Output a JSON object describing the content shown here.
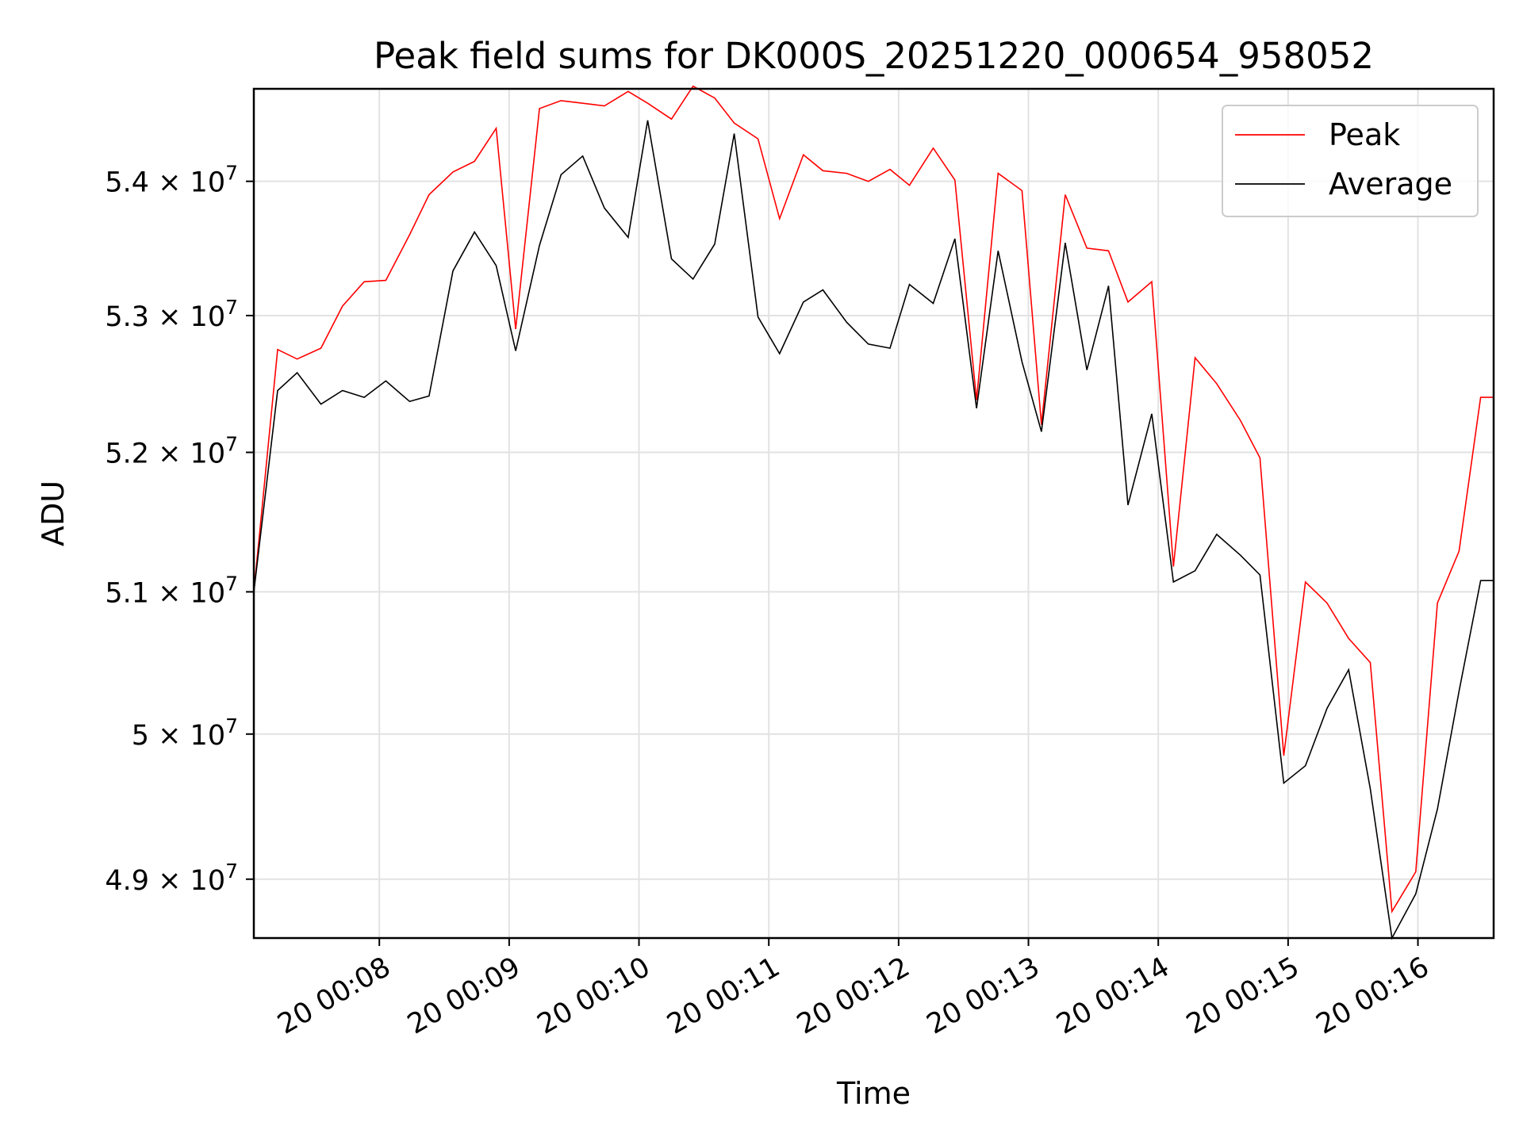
{
  "chart_data": {
    "type": "line",
    "title": "Peak field sums for DK000S_20251220_000654_958052",
    "xlabel": "Time",
    "ylabel": "ADU",
    "y_scale": "log",
    "x_start": "00:07:02",
    "x_end": "00:16:35",
    "xlim": [
      "00:07:02",
      "00:16:35"
    ],
    "ylim": [
      48600000,
      54700000
    ],
    "grid": true,
    "legend_position": "top-right",
    "x_ticks": [
      {
        "value": "00:08:00",
        "label": "20 00:08"
      },
      {
        "value": "00:09:00",
        "label": "20 00:09"
      },
      {
        "value": "00:10:00",
        "label": "20 00:10"
      },
      {
        "value": "00:11:00",
        "label": "20 00:11"
      },
      {
        "value": "00:12:00",
        "label": "20 00:12"
      },
      {
        "value": "00:13:00",
        "label": "20 00:13"
      },
      {
        "value": "00:14:00",
        "label": "20 00:14"
      },
      {
        "value": "00:15:00",
        "label": "20 00:15"
      },
      {
        "value": "00:16:00",
        "label": "20 00:16"
      }
    ],
    "y_ticks": [
      {
        "value": 49000000,
        "mantissa": "4.9",
        "exponent": "7"
      },
      {
        "value": 50000000,
        "mantissa": "5",
        "exponent": "7"
      },
      {
        "value": 51000000,
        "mantissa": "5.1",
        "exponent": "7"
      },
      {
        "value": 52000000,
        "mantissa": "5.2",
        "exponent": "7"
      },
      {
        "value": 53000000,
        "mantissa": "5.3",
        "exponent": "7"
      },
      {
        "value": 54000000,
        "mantissa": "5.4",
        "exponent": "7"
      }
    ],
    "x": [
      "00:07:02",
      "00:07:13",
      "00:07:22",
      "00:07:33",
      "00:07:43",
      "00:07:53",
      "00:08:03",
      "00:08:14",
      "00:08:23",
      "00:08:34",
      "00:08:44",
      "00:08:54",
      "00:09:03",
      "00:09:14",
      "00:09:24",
      "00:09:34",
      "00:09:44",
      "00:09:55",
      "00:10:04",
      "00:10:15",
      "00:10:25",
      "00:10:35",
      "00:10:44",
      "00:10:55",
      "00:11:05",
      "00:11:16",
      "00:11:25",
      "00:11:36",
      "00:11:46",
      "00:11:56",
      "00:12:05",
      "00:12:16",
      "00:12:26",
      "00:12:36",
      "00:12:46",
      "00:12:57",
      "00:13:06",
      "00:13:17",
      "00:13:27",
      "00:13:37",
      "00:13:46",
      "00:13:57",
      "00:14:07",
      "00:14:17",
      "00:14:27",
      "00:14:38",
      "00:14:47",
      "00:14:58",
      "00:15:08",
      "00:15:18",
      "00:15:28",
      "00:15:38",
      "00:15:48",
      "00:15:59",
      "00:16:09",
      "00:16:19",
      "00:16:29",
      "00:16:35"
    ],
    "series": [
      {
        "name": "Peak",
        "color": "#ff0000",
        "values": [
          51000000,
          52750000,
          52680000,
          52760000,
          53070000,
          53250000,
          53260000,
          53600000,
          53900000,
          54070000,
          54150000,
          54400000,
          52900000,
          54550000,
          54610000,
          54590000,
          54570000,
          54680000,
          54590000,
          54470000,
          54720000,
          54630000,
          54440000,
          54320000,
          53720000,
          54200000,
          54080000,
          54060000,
          54000000,
          54090000,
          53970000,
          54250000,
          54010000,
          52380000,
          54060000,
          53930000,
          52200000,
          53900000,
          53500000,
          53480000,
          53100000,
          53250000,
          51180000,
          52690000,
          52500000,
          52230000,
          51960000,
          49850000,
          51070000,
          50920000,
          50670000,
          50500000,
          48780000,
          49050000,
          50920000,
          51290000,
          52400000,
          52400000
        ]
      },
      {
        "name": "Average",
        "color": "#000000",
        "values": [
          51000000,
          52450000,
          52580000,
          52350000,
          52450000,
          52400000,
          52520000,
          52370000,
          52410000,
          53330000,
          53620000,
          53370000,
          52740000,
          53520000,
          54050000,
          54190000,
          53800000,
          53580000,
          54460000,
          53420000,
          53270000,
          53530000,
          54360000,
          52990000,
          52720000,
          53100000,
          53190000,
          52950000,
          52790000,
          52760000,
          53230000,
          53090000,
          53570000,
          52320000,
          53480000,
          52660000,
          52150000,
          53540000,
          52600000,
          53220000,
          51620000,
          52280000,
          51070000,
          51150000,
          51410000,
          51260000,
          51120000,
          49660000,
          49780000,
          50180000,
          50450000,
          49620000,
          48600000,
          48900000,
          49480000,
          50300000,
          51080000,
          51080000
        ]
      }
    ]
  }
}
